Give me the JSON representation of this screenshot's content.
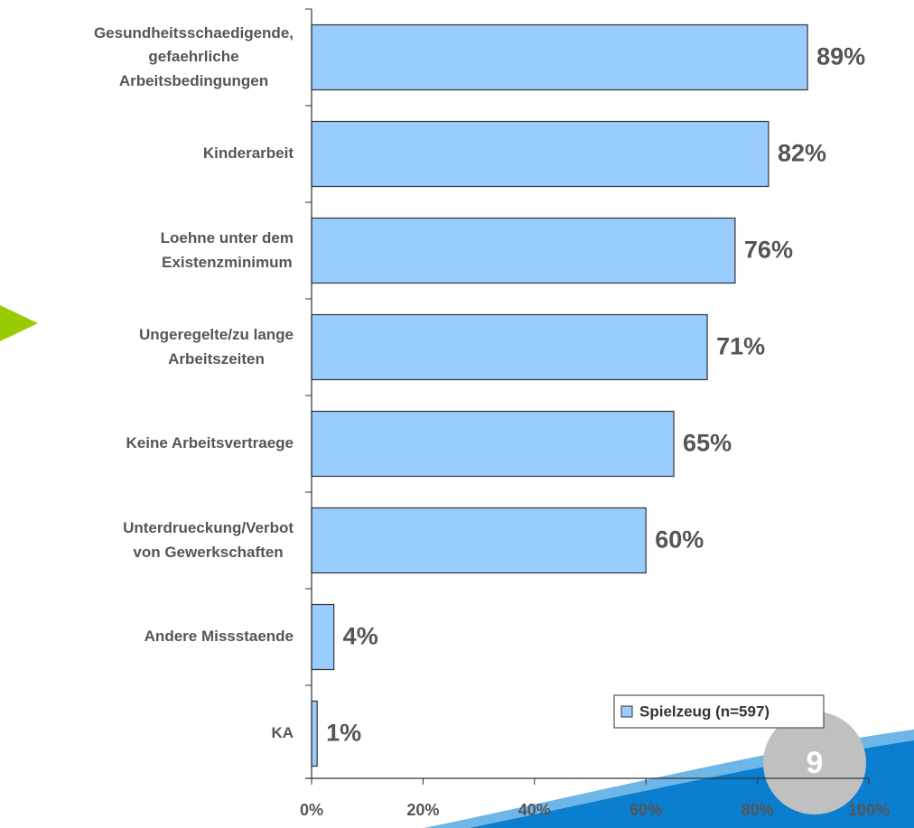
{
  "chart_data": {
    "type": "bar",
    "orientation": "horizontal",
    "categories": [
      "Gesundheitsschaedigende,\ngefaehrliche\nArbeitsbedingungen",
      "Kinderarbeit",
      "Loehne unter dem\nExistenzminimum",
      "Ungeregelte/zu lange\nArbeitszeiten",
      "Keine Arbeitsvertraege",
      "Unterdrueckung/Verbot\nvon Gewerkschaften",
      "Andere Missstaende",
      "KA"
    ],
    "series": [
      {
        "name": "Spielzeug (n=597)",
        "color": "#99ccff",
        "values": [
          89,
          82,
          76,
          71,
          65,
          60,
          4,
          1
        ],
        "value_labels": [
          "89%",
          "82%",
          "76%",
          "71%",
          "65%",
          "60%",
          "4%",
          "1%"
        ]
      }
    ],
    "xlim": [
      0,
      100
    ],
    "xticks": [
      {
        "value": 0,
        "label": "0%"
      },
      {
        "value": 20,
        "label": "20%"
      },
      {
        "value": 40,
        "label": "40%"
      },
      {
        "value": 60,
        "label": "60%"
      },
      {
        "value": 80,
        "label": "80%"
      },
      {
        "value": 100,
        "label": "100%"
      }
    ],
    "legend": "lower right"
  },
  "page_number": "9"
}
